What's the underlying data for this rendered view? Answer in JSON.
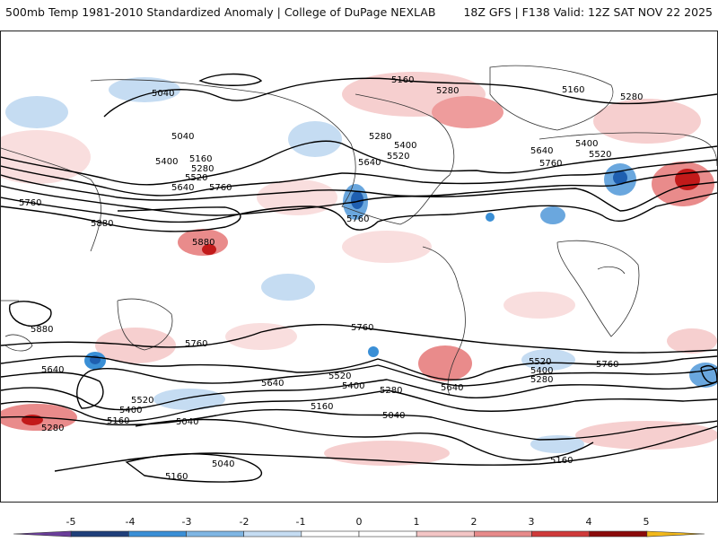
{
  "header": {
    "title_left": "500mb Temp 1981-2010 Standardized Anomaly | College of DuPage NEXLAB",
    "title_right": "18Z GFS | F138 Valid: 12Z SAT NOV 22 2025"
  },
  "contour_labels": [
    "5040",
    "5160",
    "5280",
    "5400",
    "5520",
    "5640",
    "5760",
    "5880"
  ],
  "colorbar": {
    "ticks": [
      "-5",
      "-4",
      "-3",
      "-2",
      "-1",
      "0",
      "1",
      "2",
      "3",
      "4",
      "5"
    ],
    "colors": [
      "#6a3d9a",
      "#1f3f7a",
      "#3a8fd6",
      "#7fb6e3",
      "#c5dcf2",
      "#ffffff",
      "#ffffff",
      "#f3c5c5",
      "#e78a8a",
      "#cf3a3a",
      "#8b0a0a",
      "#f2b81a"
    ]
  },
  "anomaly_colors": {
    "strong_cold": "#1f5fb0",
    "cold": "#6aa7de",
    "weak_cold": "#c5dcf2",
    "weak_warm": "#f6cfcf",
    "warm": "#e98b8b",
    "strong_warm": "#c21a1a"
  }
}
